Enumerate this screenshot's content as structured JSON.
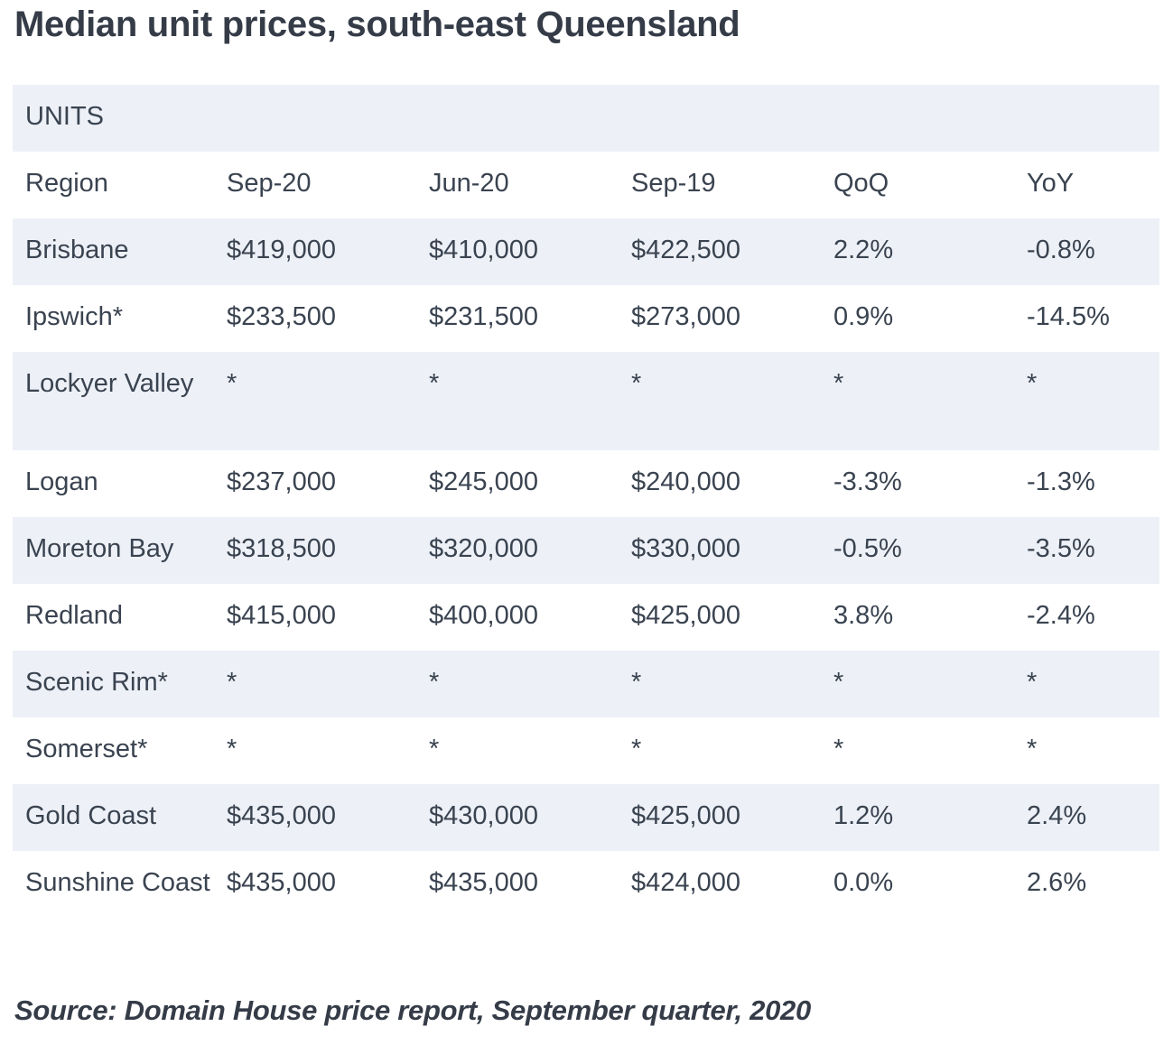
{
  "title": "Median unit prices, south-east Queensland",
  "section_label": "UNITS",
  "columns": [
    "Region",
    "Sep-20",
    "Jun-20",
    "Sep-19",
    "QoQ",
    "YoY"
  ],
  "rows": [
    [
      "Brisbane",
      "$419,000",
      "$410,000",
      "$422,500",
      "2.2%",
      "-0.8%"
    ],
    [
      "Ipswich*",
      "$233,500",
      "$231,500",
      "$273,000",
      "0.9%",
      "-14.5%"
    ],
    [
      "Lockyer Valley",
      "*",
      "*",
      "*",
      "*",
      "*"
    ],
    [
      "Logan",
      "$237,000",
      "$245,000",
      "$240,000",
      "-3.3%",
      "-1.3%"
    ],
    [
      "Moreton Bay",
      "$318,500",
      "$320,000",
      "$330,000",
      "-0.5%",
      "-3.5%"
    ],
    [
      "Redland",
      "$415,000",
      "$400,000",
      "$425,000",
      "3.8%",
      "-2.4%"
    ],
    [
      "Scenic Rim*",
      "*",
      "*",
      "*",
      "*",
      "*"
    ],
    [
      "Somerset*",
      "*",
      "*",
      "*",
      "*",
      "*"
    ],
    [
      "Gold Coast",
      "$435,000",
      "$430,000",
      "$425,000",
      "1.2%",
      "2.4%"
    ],
    [
      "Sunshine Coast",
      "$435,000",
      "$435,000",
      "$424,000",
      "0.0%",
      "2.6%"
    ]
  ],
  "source": "Source: Domain House price report, September quarter, 2020"
}
